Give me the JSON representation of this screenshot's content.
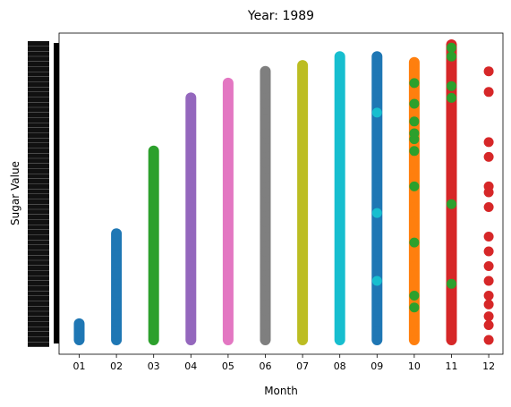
{
  "chart_data": {
    "type": "scatter",
    "title": "Year: 1989",
    "xlabel": "Month",
    "ylabel": "Sugar Value",
    "categories": [
      "01",
      "02",
      "03",
      "04",
      "05",
      "06",
      "07",
      "08",
      "09",
      "10",
      "11",
      "12"
    ],
    "ylim": [
      0,
      1
    ],
    "grid": false,
    "legend": "none",
    "y_tick_labels_overlapping": true,
    "series": [
      {
        "category": "01",
        "color": "#1f77b4",
        "range": [
          0.0,
          0.055
        ],
        "points": [
          0.0,
          0.005,
          0.01,
          0.015,
          0.02,
          0.025,
          0.03,
          0.035,
          0.04,
          0.045,
          0.05,
          0.055
        ]
      },
      {
        "category": "02",
        "color": "#1f77b4",
        "range": [
          0.0,
          0.36
        ],
        "points": [
          0.0,
          0.02,
          0.04,
          0.06,
          0.08,
          0.1,
          0.12,
          0.14,
          0.16,
          0.18,
          0.2,
          0.22,
          0.24,
          0.26,
          0.28,
          0.3,
          0.32,
          0.34,
          0.36
        ]
      },
      {
        "category": "03",
        "color": "#2ca02c",
        "range": [
          0.0,
          0.64
        ],
        "points": [
          0.0,
          0.04,
          0.08,
          0.12,
          0.16,
          0.2,
          0.24,
          0.28,
          0.32,
          0.36,
          0.4,
          0.44,
          0.48,
          0.52,
          0.56,
          0.6,
          0.64
        ]
      },
      {
        "category": "04",
        "color": "#9467bd",
        "range": [
          0.0,
          0.82
        ],
        "points": [
          0.0,
          0.05,
          0.1,
          0.15,
          0.2,
          0.25,
          0.3,
          0.35,
          0.4,
          0.45,
          0.5,
          0.55,
          0.6,
          0.65,
          0.7,
          0.75,
          0.8,
          0.82
        ]
      },
      {
        "category": "05",
        "color": "#e377c2",
        "range": [
          0.0,
          0.87
        ],
        "points": [
          0.0,
          0.05,
          0.1,
          0.15,
          0.2,
          0.25,
          0.3,
          0.35,
          0.4,
          0.45,
          0.5,
          0.55,
          0.6,
          0.65,
          0.7,
          0.75,
          0.8,
          0.87
        ]
      },
      {
        "category": "06",
        "color": "#7f7f7f",
        "range": [
          0.0,
          0.91
        ],
        "points": [
          0.0,
          0.05,
          0.1,
          0.15,
          0.2,
          0.25,
          0.3,
          0.35,
          0.4,
          0.45,
          0.5,
          0.55,
          0.6,
          0.65,
          0.7,
          0.75,
          0.8,
          0.85,
          0.91
        ]
      },
      {
        "category": "07",
        "color": "#bcbd22",
        "range": [
          0.0,
          0.93
        ],
        "points": [
          0.0,
          0.05,
          0.1,
          0.15,
          0.2,
          0.25,
          0.3,
          0.35,
          0.4,
          0.45,
          0.5,
          0.55,
          0.6,
          0.65,
          0.7,
          0.75,
          0.8,
          0.85,
          0.9,
          0.93
        ]
      },
      {
        "category": "08",
        "color": "#17becf",
        "range": [
          0.0,
          0.96
        ],
        "points": [
          0.0,
          0.05,
          0.1,
          0.15,
          0.2,
          0.25,
          0.3,
          0.35,
          0.4,
          0.45,
          0.5,
          0.55,
          0.6,
          0.65,
          0.7,
          0.75,
          0.8,
          0.85,
          0.9,
          0.96
        ]
      },
      {
        "category": "09",
        "color": "#1f77b4",
        "range": [
          0.0,
          0.96
        ],
        "points": [
          0.0,
          0.03,
          0.06,
          0.1,
          0.14,
          0.2,
          0.25,
          0.3,
          0.37,
          0.45,
          0.5,
          0.55,
          0.62,
          0.7,
          0.75,
          0.8,
          0.84,
          0.88,
          0.92,
          0.96
        ]
      },
      {
        "category": "10",
        "color": "#ff7f0e",
        "range": [
          0.0,
          0.94
        ],
        "points": [
          0.0,
          0.03,
          0.06,
          0.1,
          0.15,
          0.2,
          0.25,
          0.3,
          0.35,
          0.4,
          0.45,
          0.5,
          0.55,
          0.6,
          0.65,
          0.7,
          0.75,
          0.8,
          0.85,
          0.9,
          0.94
        ]
      },
      {
        "category": "11",
        "color": "#d62728",
        "range": [
          0.0,
          1.0
        ],
        "points": [
          0.0,
          0.04,
          0.08,
          0.12,
          0.17,
          0.22,
          0.27,
          0.32,
          0.38,
          0.45,
          0.5,
          0.55,
          0.6,
          0.66,
          0.72,
          0.78,
          0.84,
          0.9,
          0.95,
          1.0
        ]
      },
      {
        "category": "12",
        "color": "#d62728",
        "range": [
          0.0,
          0.91
        ],
        "points": [
          0.0,
          0.05,
          0.08,
          0.12,
          0.15,
          0.2,
          0.25,
          0.3,
          0.35,
          0.45,
          0.5,
          0.52,
          0.62,
          0.67,
          0.84,
          0.91
        ]
      }
    ]
  }
}
